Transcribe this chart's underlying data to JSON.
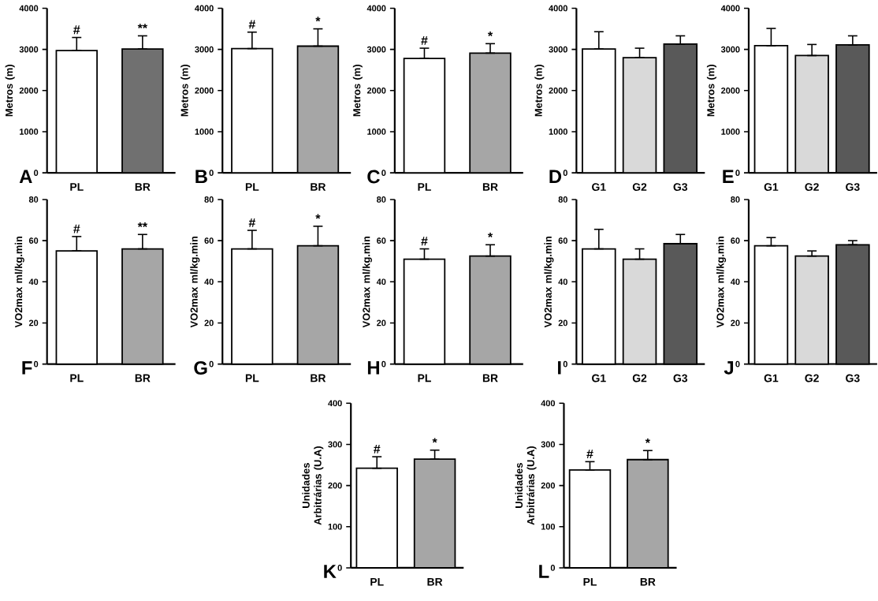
{
  "chart_data": [
    {
      "type": "bar",
      "ylabel": "Metros (m)",
      "categories": [
        "PL",
        "BR"
      ],
      "values": [
        2970,
        3010
      ],
      "colors": [
        "#ffffff",
        "#707070"
      ],
      "errors": [
        [
          2970,
          3290
        ],
        [
          3010,
          3330
        ]
      ],
      "ylim": [
        0,
        4000
      ],
      "yticks": [
        0,
        1000,
        2000,
        3000,
        4000
      ],
      "annotations": [
        "A",
        {
          "text": "#",
          "x": "PL",
          "y": 3290
        },
        {
          "text": "**",
          "x": "BR",
          "y": 3330
        }
      ]
    },
    {
      "type": "bar",
      "ylabel": "Metros (m)",
      "categories": [
        "PL",
        "BR"
      ],
      "values": [
        3020,
        3080
      ],
      "colors": [
        "#ffffff",
        "#a6a6a6"
      ],
      "errors": [
        [
          3020,
          3420
        ],
        [
          3080,
          3500
        ]
      ],
      "ylim": [
        0,
        4000
      ],
      "yticks": [
        0,
        1000,
        2000,
        3000,
        4000
      ],
      "annotations": [
        "B",
        {
          "text": "#",
          "x": "PL",
          "y": 3420
        },
        {
          "text": "*",
          "x": "BR",
          "y": 3500
        }
      ]
    },
    {
      "type": "bar",
      "ylabel": "Metros (m)",
      "categories": [
        "PL",
        "BR"
      ],
      "values": [
        2780,
        2910
      ],
      "colors": [
        "#ffffff",
        "#a6a6a6"
      ],
      "errors": [
        [
          2780,
          3030
        ],
        [
          2910,
          3140
        ]
      ],
      "ylim": [
        0,
        4000
      ],
      "yticks": [
        0,
        1000,
        2000,
        3000,
        4000
      ],
      "annotations": [
        "C",
        {
          "text": "#",
          "x": "PL",
          "y": 3030
        },
        {
          "text": "*",
          "x": "BR",
          "y": 3140
        }
      ]
    },
    {
      "type": "bar",
      "ylabel": "Metros (m)",
      "categories": [
        "G1",
        "G2",
        "G3"
      ],
      "values": [
        3010,
        2800,
        3130
      ],
      "colors": [
        "#ffffff",
        "#d9d9d9",
        "#595959"
      ],
      "errors": [
        [
          3010,
          3430
        ],
        [
          2800,
          3030
        ],
        [
          3130,
          3330
        ]
      ],
      "ylim": [
        0,
        4000
      ],
      "yticks": [
        0,
        1000,
        2000,
        3000,
        4000
      ],
      "annotations": [
        "D"
      ]
    },
    {
      "type": "bar",
      "ylabel": "Metros (m)",
      "categories": [
        "G1",
        "G2",
        "G3"
      ],
      "values": [
        3090,
        2850,
        3110
      ],
      "colors": [
        "#ffffff",
        "#d9d9d9",
        "#595959"
      ],
      "errors": [
        [
          3090,
          3510
        ],
        [
          2850,
          3120
        ],
        [
          3110,
          3330
        ]
      ],
      "ylim": [
        0,
        4000
      ],
      "yticks": [
        0,
        1000,
        2000,
        3000,
        4000
      ],
      "annotations": [
        "E"
      ]
    },
    {
      "type": "bar",
      "ylabel": "VO2max ml/kg.min",
      "categories": [
        "PL",
        "BR"
      ],
      "values": [
        55,
        56
      ],
      "colors": [
        "#ffffff",
        "#a6a6a6"
      ],
      "errors": [
        [
          55,
          62
        ],
        [
          56,
          63
        ]
      ],
      "ylim": [
        0,
        80
      ],
      "yticks": [
        0,
        20,
        40,
        60,
        80
      ],
      "annotations": [
        "F",
        {
          "text": "#",
          "x": "PL",
          "y": 62
        },
        {
          "text": "**",
          "x": "BR",
          "y": 63
        }
      ]
    },
    {
      "type": "bar",
      "ylabel": "VO2max ml/kg.min",
      "categories": [
        "PL",
        "BR"
      ],
      "values": [
        56,
        57.5
      ],
      "colors": [
        "#ffffff",
        "#a6a6a6"
      ],
      "errors": [
        [
          56,
          65
        ],
        [
          57.5,
          67
        ]
      ],
      "ylim": [
        0,
        80
      ],
      "yticks": [
        0,
        20,
        40,
        60,
        80
      ],
      "annotations": [
        "G",
        {
          "text": "#",
          "x": "PL",
          "y": 65
        },
        {
          "text": "*",
          "x": "BR",
          "y": 67
        }
      ]
    },
    {
      "type": "bar",
      "ylabel": "VO2max ml/kg.min",
      "categories": [
        "PL",
        "BR"
      ],
      "values": [
        51,
        52.5
      ],
      "colors": [
        "#ffffff",
        "#a6a6a6"
      ],
      "errors": [
        [
          51,
          56
        ],
        [
          52.5,
          58
        ]
      ],
      "ylim": [
        0,
        80
      ],
      "yticks": [
        0,
        20,
        40,
        60,
        80
      ],
      "annotations": [
        "H",
        {
          "text": "#",
          "x": "PL",
          "y": 56
        },
        {
          "text": "*",
          "x": "BR",
          "y": 58
        }
      ]
    },
    {
      "type": "bar",
      "ylabel": "VO2max ml/kg.min",
      "categories": [
        "G1",
        "G2",
        "G3"
      ],
      "values": [
        56,
        51,
        58.5
      ],
      "colors": [
        "#ffffff",
        "#d9d9d9",
        "#595959"
      ],
      "errors": [
        [
          56,
          65.5
        ],
        [
          51,
          56
        ],
        [
          58.5,
          63
        ]
      ],
      "ylim": [
        0,
        80
      ],
      "yticks": [
        0,
        20,
        40,
        60,
        80
      ],
      "annotations": [
        "I"
      ]
    },
    {
      "type": "bar",
      "ylabel": "VO2max ml/kg.min",
      "categories": [
        "G1",
        "G2",
        "G3"
      ],
      "values": [
        57.5,
        52.5,
        58
      ],
      "colors": [
        "#ffffff",
        "#d9d9d9",
        "#595959"
      ],
      "errors": [
        [
          57.5,
          61.5
        ],
        [
          52.5,
          55
        ],
        [
          58,
          60
        ]
      ],
      "ylim": [
        0,
        80
      ],
      "yticks": [
        0,
        20,
        40,
        60,
        80
      ],
      "annotations": [
        "J"
      ]
    },
    {
      "type": "bar",
      "ylabel": "Unidades Arbitrárias (U.A)",
      "categories": [
        "PL",
        "BR"
      ],
      "values": [
        242,
        264
      ],
      "colors": [
        "#ffffff",
        "#a6a6a6"
      ],
      "errors": [
        [
          242,
          270
        ],
        [
          264,
          286
        ]
      ],
      "ylim": [
        0,
        400
      ],
      "yticks": [
        0,
        100,
        200,
        300,
        400
      ],
      "annotations": [
        "K",
        {
          "text": "#",
          "x": "PL",
          "y": 270
        },
        {
          "text": "*",
          "x": "BR",
          "y": 286
        }
      ]
    },
    {
      "type": "bar",
      "ylabel": "Unidades Arbitrárias (U.A)",
      "categories": [
        "PL",
        "BR"
      ],
      "values": [
        238,
        263
      ],
      "colors": [
        "#ffffff",
        "#a6a6a6"
      ],
      "errors": [
        [
          238,
          258
        ],
        [
          263,
          285
        ]
      ],
      "ylim": [
        0,
        400
      ],
      "yticks": [
        0,
        100,
        200,
        300,
        400
      ],
      "annotations": [
        "L",
        {
          "text": "#",
          "x": "PL",
          "y": 258
        },
        {
          "text": "*",
          "x": "BR",
          "y": 285
        }
      ]
    }
  ]
}
